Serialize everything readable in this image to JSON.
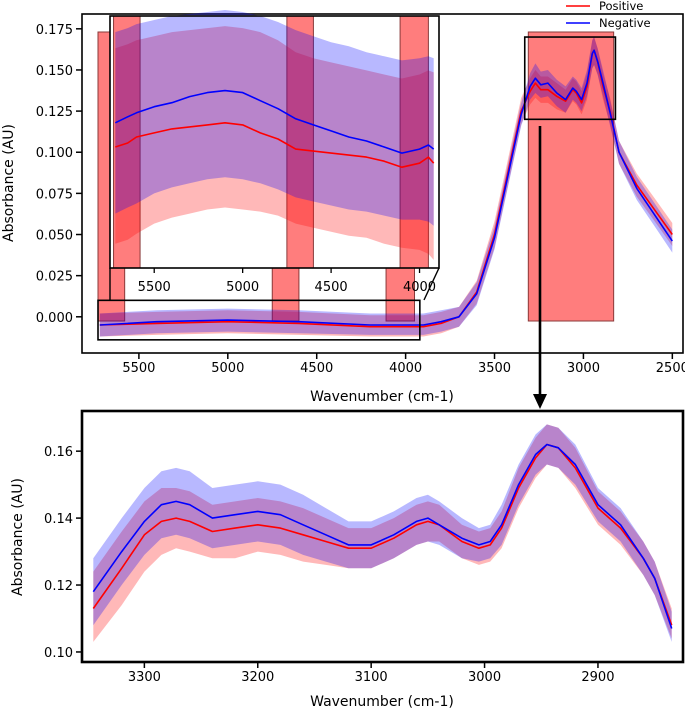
{
  "colors": {
    "positive": "#ff0000",
    "negative": "#0000ff",
    "highlight": "#ff6f6f",
    "zoom_box": "#000000"
  },
  "chart_data": [
    {
      "id": "top",
      "type": "line",
      "xlabel": "Wavenumber (cm-1)",
      "ylabel": "Absorbance (AU)",
      "xlim": [
        5820,
        2440
      ],
      "ylim": [
        -0.022,
        0.184
      ],
      "xticks": [
        5500,
        5000,
        4500,
        4000,
        3500,
        3000,
        2500
      ],
      "xtick_labels": [
        "5500",
        "5000",
        "4500",
        "4000",
        "3500",
        "3000",
        "2500"
      ],
      "yticks": [
        0.0,
        0.025,
        0.05,
        0.075,
        0.1,
        0.125,
        0.15,
        0.175
      ],
      "ytick_labels": [
        "0.000",
        "0.025",
        "0.050",
        "0.075",
        "0.100",
        "0.125",
        "0.150",
        "0.175"
      ],
      "legend": {
        "position": "top-right",
        "entries": [
          "Positive",
          "Negative"
        ]
      },
      "highlight_regions": [
        [
          5730,
          5580
        ],
        [
          4750,
          4600
        ],
        [
          4110,
          3950
        ],
        [
          3310,
          2830
        ]
      ],
      "zoom_boxes": [
        {
          "x": [
            5730,
            3920
          ],
          "y": [
            -0.014,
            0.01
          ]
        },
        {
          "x": [
            3330,
            2820
          ],
          "y": [
            0.12,
            0.17
          ]
        }
      ],
      "series": [
        {
          "name": "Positive",
          "x": [
            5720,
            5400,
            5000,
            4600,
            4200,
            3900,
            3800,
            3700,
            3600,
            3500,
            3450,
            3400,
            3350,
            3300,
            3270,
            3240,
            3200,
            3150,
            3100,
            3060,
            3040,
            3010,
            2980,
            2950,
            2940,
            2920,
            2890,
            2850,
            2800,
            2700,
            2600,
            2500
          ],
          "values": [
            -0.005,
            -0.004,
            -0.003,
            -0.004,
            -0.006,
            -0.006,
            -0.004,
            0.0,
            0.015,
            0.05,
            0.075,
            0.1,
            0.125,
            0.137,
            0.142,
            0.138,
            0.138,
            0.134,
            0.131,
            0.138,
            0.136,
            0.13,
            0.14,
            0.16,
            0.162,
            0.155,
            0.14,
            0.125,
            0.1,
            0.08,
            0.065,
            0.05
          ],
          "band_lower": [
            -0.012,
            -0.011,
            -0.01,
            -0.011,
            -0.012,
            -0.012,
            -0.01,
            -0.006,
            0.008,
            0.042,
            0.067,
            0.092,
            0.117,
            0.129,
            0.133,
            0.13,
            0.13,
            0.126,
            0.124,
            0.131,
            0.129,
            0.123,
            0.132,
            0.151,
            0.153,
            0.147,
            0.132,
            0.117,
            0.093,
            0.073,
            0.058,
            0.043
          ],
          "band_upper": [
            0.002,
            0.003,
            0.004,
            0.003,
            0.001,
            0.001,
            0.003,
            0.006,
            0.022,
            0.058,
            0.083,
            0.108,
            0.133,
            0.145,
            0.15,
            0.146,
            0.146,
            0.142,
            0.138,
            0.145,
            0.143,
            0.137,
            0.148,
            0.168,
            0.17,
            0.163,
            0.148,
            0.133,
            0.107,
            0.087,
            0.072,
            0.057
          ]
        },
        {
          "name": "Negative",
          "x": [
            5720,
            5400,
            5000,
            4600,
            4200,
            3900,
            3800,
            3700,
            3600,
            3500,
            3450,
            3400,
            3350,
            3300,
            3270,
            3240,
            3200,
            3150,
            3100,
            3060,
            3040,
            3010,
            2980,
            2950,
            2940,
            2920,
            2890,
            2850,
            2800,
            2700,
            2600,
            2500
          ],
          "values": [
            -0.005,
            -0.003,
            -0.002,
            -0.003,
            -0.005,
            -0.005,
            -0.003,
            0.0,
            0.014,
            0.048,
            0.073,
            0.098,
            0.123,
            0.14,
            0.145,
            0.141,
            0.142,
            0.136,
            0.132,
            0.139,
            0.137,
            0.132,
            0.142,
            0.16,
            0.162,
            0.155,
            0.142,
            0.124,
            0.1,
            0.078,
            0.062,
            0.046
          ],
          "band_lower": [
            -0.012,
            -0.01,
            -0.009,
            -0.01,
            -0.011,
            -0.011,
            -0.009,
            -0.006,
            0.007,
            0.041,
            0.066,
            0.091,
            0.116,
            0.132,
            0.136,
            0.133,
            0.134,
            0.128,
            0.124,
            0.132,
            0.13,
            0.125,
            0.134,
            0.151,
            0.153,
            0.147,
            0.134,
            0.116,
            0.093,
            0.071,
            0.055,
            0.039
          ],
          "band_upper": [
            0.002,
            0.004,
            0.005,
            0.004,
            0.002,
            0.002,
            0.004,
            0.006,
            0.021,
            0.055,
            0.08,
            0.105,
            0.13,
            0.148,
            0.154,
            0.149,
            0.15,
            0.144,
            0.14,
            0.146,
            0.144,
            0.139,
            0.15,
            0.168,
            0.17,
            0.163,
            0.15,
            0.132,
            0.107,
            0.085,
            0.069,
            0.053
          ]
        }
      ]
    },
    {
      "id": "inset",
      "type": "line",
      "xlim": [
        5750,
        3890
      ],
      "ylim": [
        0.033,
        0.158
      ],
      "xticks": [
        5500,
        5000,
        4500,
        4000
      ],
      "xtick_labels": [
        "5500",
        "5000",
        "4500",
        "4000"
      ],
      "highlight_regions": [
        [
          5730,
          5580
        ],
        [
          4750,
          4600
        ],
        [
          4110,
          3950
        ]
      ],
      "series": [
        {
          "name": "Positive",
          "x": [
            5720,
            5650,
            5600,
            5500,
            5400,
            5300,
            5200,
            5100,
            5000,
            4900,
            4800,
            4700,
            4600,
            4500,
            4400,
            4300,
            4200,
            4100,
            4000,
            3950,
            3920
          ],
          "values": [
            0.093,
            0.095,
            0.098,
            0.1,
            0.102,
            0.103,
            0.104,
            0.105,
            0.104,
            0.1,
            0.097,
            0.092,
            0.091,
            0.09,
            0.089,
            0.088,
            0.086,
            0.083,
            0.085,
            0.088,
            0.085
          ],
          "band_lower": [
            0.045,
            0.047,
            0.05,
            0.055,
            0.058,
            0.06,
            0.062,
            0.063,
            0.062,
            0.061,
            0.059,
            0.055,
            0.053,
            0.051,
            0.049,
            0.048,
            0.045,
            0.043,
            0.042,
            0.04,
            0.037
          ],
          "band_upper": [
            0.142,
            0.144,
            0.146,
            0.148,
            0.15,
            0.151,
            0.152,
            0.153,
            0.152,
            0.15,
            0.146,
            0.14,
            0.137,
            0.135,
            0.133,
            0.131,
            0.129,
            0.127,
            0.129,
            0.131,
            0.13
          ]
        },
        {
          "name": "Negative",
          "x": [
            5720,
            5650,
            5600,
            5500,
            5400,
            5300,
            5200,
            5100,
            5000,
            4900,
            4800,
            4700,
            4600,
            4500,
            4400,
            4300,
            4200,
            4100,
            4000,
            3950,
            3920
          ],
          "values": [
            0.105,
            0.108,
            0.11,
            0.113,
            0.115,
            0.118,
            0.12,
            0.121,
            0.12,
            0.116,
            0.112,
            0.107,
            0.104,
            0.101,
            0.098,
            0.096,
            0.093,
            0.09,
            0.092,
            0.094,
            0.092
          ],
          "band_lower": [
            0.06,
            0.063,
            0.065,
            0.07,
            0.073,
            0.075,
            0.077,
            0.078,
            0.077,
            0.075,
            0.072,
            0.068,
            0.066,
            0.064,
            0.062,
            0.061,
            0.059,
            0.057,
            0.057,
            0.056,
            0.054
          ],
          "band_upper": [
            0.15,
            0.152,
            0.154,
            0.156,
            0.158,
            0.159,
            0.16,
            0.161,
            0.16,
            0.158,
            0.155,
            0.151,
            0.148,
            0.145,
            0.143,
            0.14,
            0.138,
            0.136,
            0.137,
            0.138,
            0.137
          ]
        }
      ]
    },
    {
      "id": "bottom",
      "type": "line",
      "xlabel": "Wavenumber (cm-1)",
      "ylabel": "Absorbance (AU)",
      "xlim": [
        3355,
        2825
      ],
      "ylim": [
        0.097,
        0.172
      ],
      "xticks": [
        3300,
        3200,
        3100,
        3000,
        2900
      ],
      "xtick_labels": [
        "3300",
        "3200",
        "3100",
        "3000",
        "2900"
      ],
      "yticks": [
        0.1,
        0.12,
        0.14,
        0.16
      ],
      "ytick_labels": [
        "0.10",
        "0.12",
        "0.14",
        "0.16"
      ],
      "series": [
        {
          "name": "Positive",
          "x": [
            3345,
            3320,
            3300,
            3285,
            3272,
            3260,
            3240,
            3220,
            3200,
            3180,
            3160,
            3140,
            3120,
            3100,
            3080,
            3060,
            3050,
            3040,
            3020,
            3005,
            2995,
            2985,
            2970,
            2955,
            2945,
            2935,
            2920,
            2900,
            2880,
            2860,
            2850,
            2835
          ],
          "values": [
            0.113,
            0.125,
            0.135,
            0.139,
            0.14,
            0.139,
            0.136,
            0.137,
            0.138,
            0.137,
            0.135,
            0.133,
            0.131,
            0.131,
            0.134,
            0.138,
            0.139,
            0.138,
            0.133,
            0.131,
            0.132,
            0.137,
            0.149,
            0.158,
            0.162,
            0.161,
            0.155,
            0.143,
            0.137,
            0.128,
            0.122,
            0.108
          ],
          "band_lower": [
            0.103,
            0.114,
            0.124,
            0.129,
            0.131,
            0.13,
            0.128,
            0.128,
            0.13,
            0.129,
            0.127,
            0.126,
            0.125,
            0.125,
            0.128,
            0.132,
            0.133,
            0.133,
            0.128,
            0.126,
            0.127,
            0.131,
            0.143,
            0.152,
            0.156,
            0.155,
            0.149,
            0.138,
            0.132,
            0.123,
            0.117,
            0.104
          ],
          "band_upper": [
            0.124,
            0.136,
            0.145,
            0.149,
            0.149,
            0.148,
            0.144,
            0.145,
            0.146,
            0.145,
            0.143,
            0.14,
            0.137,
            0.137,
            0.14,
            0.144,
            0.145,
            0.144,
            0.138,
            0.136,
            0.137,
            0.142,
            0.155,
            0.164,
            0.168,
            0.167,
            0.161,
            0.148,
            0.142,
            0.133,
            0.127,
            0.113
          ]
        },
        {
          "name": "Negative",
          "x": [
            3345,
            3320,
            3300,
            3285,
            3272,
            3260,
            3240,
            3220,
            3200,
            3180,
            3160,
            3140,
            3120,
            3100,
            3080,
            3060,
            3050,
            3040,
            3020,
            3005,
            2995,
            2985,
            2970,
            2955,
            2945,
            2935,
            2920,
            2900,
            2880,
            2860,
            2850,
            2835
          ],
          "values": [
            0.118,
            0.13,
            0.139,
            0.144,
            0.145,
            0.144,
            0.14,
            0.141,
            0.142,
            0.141,
            0.138,
            0.135,
            0.132,
            0.132,
            0.135,
            0.139,
            0.14,
            0.138,
            0.134,
            0.132,
            0.133,
            0.138,
            0.15,
            0.159,
            0.162,
            0.161,
            0.156,
            0.144,
            0.138,
            0.128,
            0.122,
            0.107
          ],
          "band_lower": [
            0.108,
            0.12,
            0.129,
            0.134,
            0.135,
            0.134,
            0.131,
            0.132,
            0.133,
            0.132,
            0.129,
            0.127,
            0.125,
            0.125,
            0.128,
            0.132,
            0.133,
            0.132,
            0.128,
            0.127,
            0.128,
            0.132,
            0.144,
            0.153,
            0.156,
            0.155,
            0.15,
            0.139,
            0.133,
            0.123,
            0.117,
            0.103
          ],
          "band_upper": [
            0.128,
            0.14,
            0.149,
            0.154,
            0.155,
            0.154,
            0.149,
            0.15,
            0.151,
            0.15,
            0.147,
            0.143,
            0.139,
            0.139,
            0.142,
            0.146,
            0.147,
            0.145,
            0.14,
            0.137,
            0.138,
            0.144,
            0.156,
            0.165,
            0.168,
            0.167,
            0.162,
            0.149,
            0.143,
            0.133,
            0.127,
            0.112
          ]
        }
      ]
    }
  ]
}
